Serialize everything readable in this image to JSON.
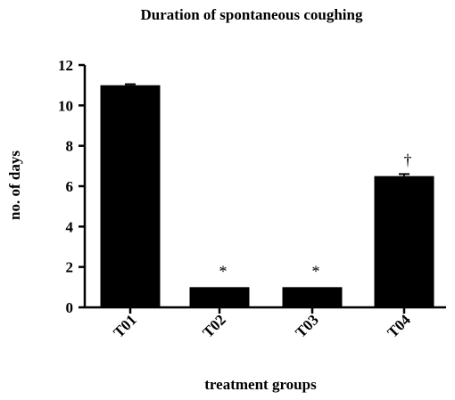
{
  "chart_data": {
    "type": "bar",
    "title": "Duration of spontaneous coughing",
    "xlabel": "treatment groups",
    "ylabel": "no. of days",
    "categories": [
      "T01",
      "T02",
      "T03",
      "T04"
    ],
    "values": [
      11.0,
      1.0,
      1.0,
      6.5
    ],
    "error_upper": [
      0.05,
      0.0,
      0.0,
      0.1
    ],
    "annotations": [
      "",
      "*",
      "*",
      "†"
    ],
    "ylim": [
      0,
      12
    ],
    "yticks": [
      0,
      2,
      4,
      6,
      8,
      10,
      12
    ],
    "grid": false,
    "bar_color": "#000000"
  }
}
